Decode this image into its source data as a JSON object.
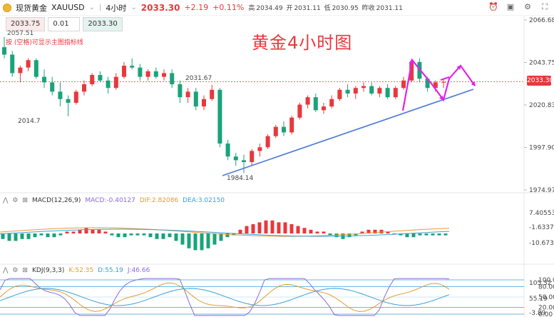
{
  "header": {
    "symbol_name": "现货黄金",
    "symbol_code": "XAUUSD",
    "timeframe": "4小时",
    "price": "2033.30",
    "change": "+2.19",
    "change_pct": "+0.11%",
    "high_label": "高",
    "high": "2034.49",
    "open_label": "开",
    "open": "2031.11",
    "low_label": "低",
    "low": "2030.95",
    "prev_label": "昨收",
    "prev": "2031.11"
  },
  "trade": {
    "bid": "2033.75",
    "lot": "0.01",
    "ask": "2033.30"
  },
  "hint": "按 (空格)可显示主图指标线",
  "chart_title": "黄金4小时图",
  "price_axis": {
    "ticks": [
      "2066.68",
      "2043.75",
      "2020.83",
      "1997.90",
      "1974.97"
    ],
    "current": "2033.30"
  },
  "annotations": {
    "max_label": "2057.51",
    "high_mark": "2031.67",
    "low_left": "2014.7",
    "low_mark": "1984.14"
  },
  "macd": {
    "label": "MACD(12,26,9)",
    "macd": "MACD:-0.40127",
    "dif": "DIF:2.82086",
    "dea": "DEA:3.02150",
    "ticks": [
      "7.40553",
      "-1.63374",
      "-10.67300"
    ]
  },
  "kdj": {
    "label": "KDJ(9,3,3)",
    "k": "K:52.35",
    "d": "D:55.19",
    "j": "J:46.66",
    "ticks_left": [
      "100.00",
      "80.00",
      "50.00",
      "20.00",
      "0.00"
    ],
    "ticks_right": [
      "105.32",
      "55.19",
      "-3.89"
    ]
  },
  "colors": {
    "up": "#e8383d",
    "down": "#1aa37a",
    "trend": "#4a78d6",
    "arrow": "#e024e8"
  },
  "chart_data": {
    "type": "candlestick",
    "timeframe": "4H",
    "ylim": [
      1974.97,
      2066.68
    ],
    "candles": [
      [
        2052,
        2057.5,
        2046,
        2048
      ],
      [
        2048,
        2050,
        2036,
        2038
      ],
      [
        2038,
        2042,
        2033,
        2041
      ],
      [
        2041,
        2046,
        2039,
        2045
      ],
      [
        2045,
        2046,
        2035,
        2036
      ],
      [
        2036,
        2040,
        2030,
        2033
      ],
      [
        2033,
        2036,
        2026,
        2028
      ],
      [
        2028,
        2033,
        2020,
        2024
      ],
      [
        2024,
        2026,
        2014.7,
        2022
      ],
      [
        2022,
        2029,
        2021,
        2028
      ],
      [
        2028,
        2034,
        2026,
        2032
      ],
      [
        2032,
        2038,
        2031,
        2037
      ],
      [
        2037,
        2039,
        2033,
        2034
      ],
      [
        2034,
        2036,
        2027,
        2030
      ],
      [
        2030,
        2038,
        2029,
        2036
      ],
      [
        2036,
        2044,
        2035,
        2042
      ],
      [
        2042,
        2046,
        2040,
        2041
      ],
      [
        2041,
        2043,
        2034,
        2036
      ],
      [
        2036,
        2040,
        2034,
        2039
      ],
      [
        2039,
        2041,
        2035,
        2036
      ],
      [
        2036,
        2040,
        2034,
        2038
      ],
      [
        2038,
        2040,
        2030,
        2032
      ],
      [
        2032,
        2034,
        2022,
        2025
      ],
      [
        2025,
        2030,
        2022,
        2028
      ],
      [
        2028,
        2030,
        2018,
        2020
      ],
      [
        2020,
        2026,
        2018,
        2024
      ],
      [
        2024,
        2031.67,
        2023,
        2029
      ],
      [
        2029,
        2030,
        1998,
        2000
      ],
      [
        2000,
        2002,
        1991,
        1993
      ],
      [
        1993,
        1995,
        1988,
        1991
      ],
      [
        1991,
        1994,
        1984.14,
        1990
      ],
      [
        1990,
        1997,
        1988,
        1996
      ],
      [
        1996,
        2000,
        1993,
        1998
      ],
      [
        1998,
        2005,
        1997,
        2004
      ],
      [
        2004,
        2010,
        2003,
        2009
      ],
      [
        2009,
        2012,
        2004,
        2006
      ],
      [
        2006,
        2015,
        2005,
        2014
      ],
      [
        2014,
        2022,
        2013,
        2021
      ],
      [
        2021,
        2026,
        2019,
        2025
      ],
      [
        2025,
        2027,
        2017,
        2018
      ],
      [
        2018,
        2022,
        2016,
        2020
      ],
      [
        2020,
        2026,
        2019,
        2024
      ],
      [
        2024,
        2030,
        2023,
        2029
      ],
      [
        2029,
        2032,
        2025,
        2027
      ],
      [
        2027,
        2031,
        2024,
        2030
      ],
      [
        2030,
        2033,
        2028,
        2031
      ],
      [
        2031,
        2033,
        2026,
        2027
      ],
      [
        2027,
        2031,
        2025,
        2030
      ],
      [
        2030,
        2032,
        2024,
        2025
      ],
      [
        2025,
        2031,
        2024,
        2030
      ],
      [
        2030,
        2036,
        2029,
        2034
      ],
      [
        2034,
        2045,
        2033,
        2044
      ],
      [
        2044,
        2046,
        2033,
        2035
      ],
      [
        2035,
        2036,
        2028,
        2030
      ],
      [
        2030,
        2034,
        2028,
        2033
      ],
      [
        2033,
        2035,
        2030,
        2033.3
      ]
    ]
  }
}
